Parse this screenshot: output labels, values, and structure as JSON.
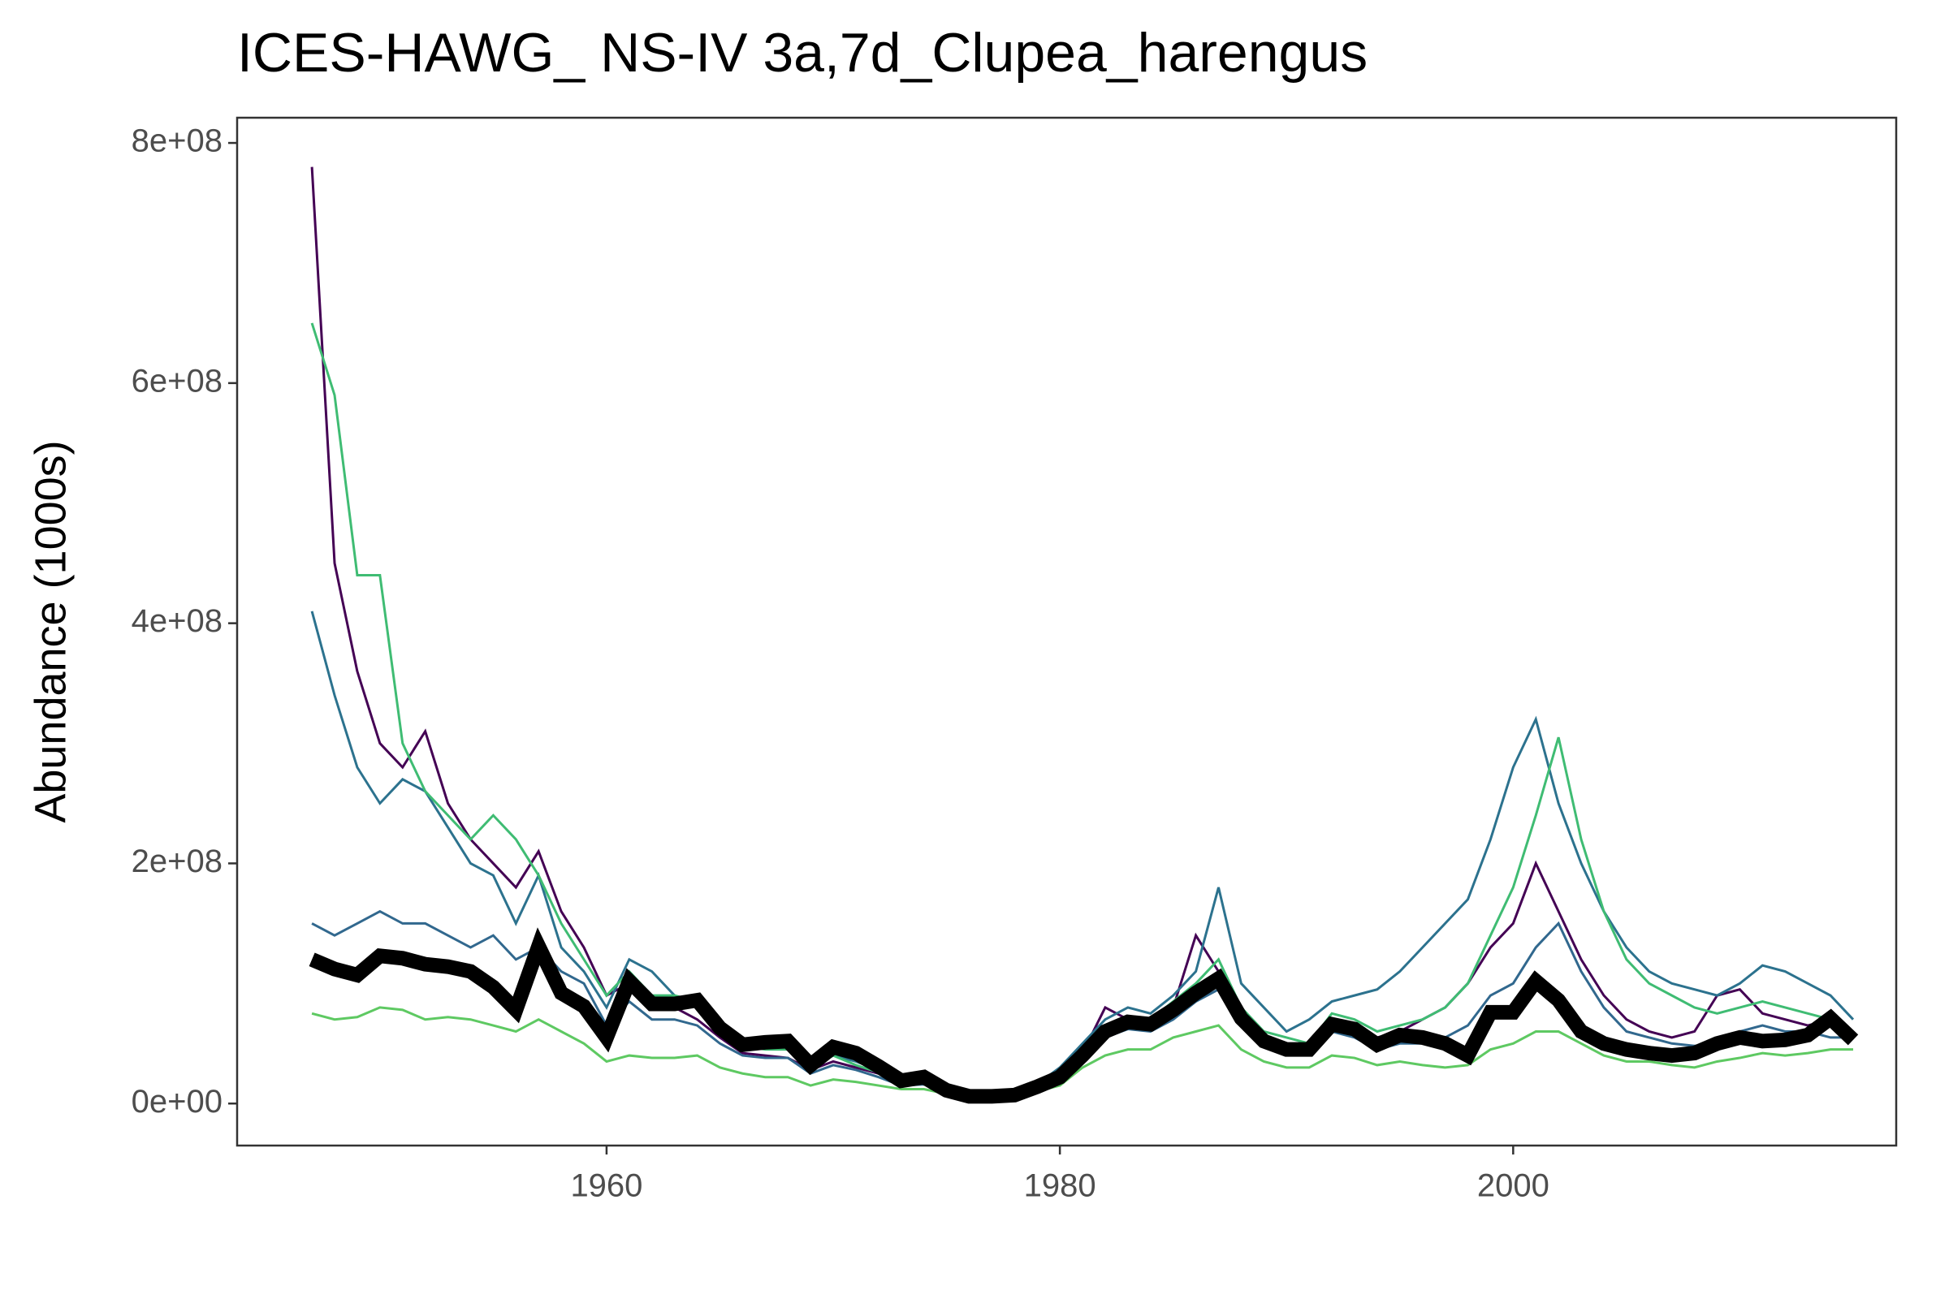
{
  "chart_data": {
    "type": "line",
    "title": "ICES-HAWG_ NS-IV 3a,7d_Clupea_harengus",
    "y_label": "Abundance (1000s)",
    "x": [
      1947,
      1948,
      1949,
      1950,
      1951,
      1952,
      1953,
      1954,
      1955,
      1956,
      1957,
      1958,
      1959,
      1960,
      1961,
      1962,
      1963,
      1964,
      1965,
      1966,
      1967,
      1968,
      1969,
      1970,
      1971,
      1972,
      1973,
      1974,
      1975,
      1976,
      1977,
      1978,
      1979,
      1980,
      1981,
      1982,
      1983,
      1984,
      1985,
      1986,
      1987,
      1988,
      1989,
      1990,
      1991,
      1992,
      1993,
      1994,
      1995,
      1996,
      1997,
      1998,
      1999,
      2000,
      2001,
      2002,
      2003,
      2004,
      2005,
      2006,
      2007,
      2008,
      2009,
      2010,
      2011,
      2012,
      2013,
      2014,
      2015
    ],
    "xlim": [
      1943.7,
      2016.9
    ],
    "xticks": [
      1960,
      1980,
      2000
    ],
    "ylim": [
      -35000000,
      821000000
    ],
    "yticks": [
      {
        "value": 0,
        "label": "0e+00"
      },
      {
        "value": 200000000,
        "label": "2e+08"
      },
      {
        "value": 400000000,
        "label": "4e+08"
      },
      {
        "value": 600000000,
        "label": "6e+08"
      },
      {
        "value": 800000000,
        "label": "8e+08"
      }
    ],
    "grid": false,
    "series": [
      {
        "color": "#440154",
        "linewidth": 3,
        "values": [
          780000000.0,
          450000000.0,
          360000000.0,
          300000000.0,
          280000000.0,
          310000000.0,
          250000000.0,
          220000000.0,
          200000000.0,
          180000000.0,
          210000000.0,
          160000000.0,
          130000000.0,
          90000000.0,
          100000000.0,
          80000000.0,
          80000000.0,
          70000000.0,
          55000000.0,
          42000000.0,
          40000000.0,
          38000000.0,
          28000000.0,
          35000000.0,
          30000000.0,
          25000000.0,
          17000000.0,
          18000000.0,
          10000000.0,
          6000000.0,
          6000000.0,
          7000000.0,
          14000000.0,
          22000000.0,
          42000000.0,
          80000000.0,
          70000000.0,
          68000000.0,
          80000000.0,
          140000000.0,
          110000000.0,
          70000000.0,
          50000000.0,
          42000000.0,
          45000000.0,
          70000000.0,
          65000000.0,
          55000000.0,
          60000000.0,
          70000000.0,
          80000000.0,
          100000000.0,
          130000000.0,
          150000000.0,
          200000000.0,
          160000000.0,
          120000000.0,
          90000000.0,
          70000000.0,
          60000000.0,
          55000000.0,
          60000000.0,
          90000000.0,
          95000000.0,
          75000000.0,
          70000000.0,
          65000000.0,
          70000000.0,
          55000000.0
        ]
      },
      {
        "color": "#2c728e",
        "linewidth": 3,
        "values": [
          410000000.0,
          340000000.0,
          280000000.0,
          250000000.0,
          270000000.0,
          260000000.0,
          230000000.0,
          200000000.0,
          190000000.0,
          150000000.0,
          190000000.0,
          130000000.0,
          110000000.0,
          80000000.0,
          120000000.0,
          110000000.0,
          90000000.0,
          80000000.0,
          60000000.0,
          50000000.0,
          50000000.0,
          45000000.0,
          30000000.0,
          40000000.0,
          35000000.0,
          28000000.0,
          20000000.0,
          20000000.0,
          12000000.0,
          8000000.0,
          7000000.0,
          8000000.0,
          16000000.0,
          30000000.0,
          50000000.0,
          70000000.0,
          80000000.0,
          75000000.0,
          90000000.0,
          110000000.0,
          180000000.0,
          100000000.0,
          80000000.0,
          60000000.0,
          70000000.0,
          85000000.0,
          90000000.0,
          95000000.0,
          110000000.0,
          130000000.0,
          150000000.0,
          170000000.0,
          220000000.0,
          280000000.0,
          320000000.0,
          250000000.0,
          200000000.0,
          160000000.0,
          130000000.0,
          110000000.0,
          100000000.0,
          95000000.0,
          90000000.0,
          100000000.0,
          115000000.0,
          110000000.0,
          100000000.0,
          90000000.0,
          70000000.0
        ]
      },
      {
        "color": "#3fbc73",
        "linewidth": 3,
        "values": [
          650000000.0,
          590000000.0,
          440000000.0,
          440000000.0,
          300000000.0,
          260000000.0,
          240000000.0,
          220000000.0,
          240000000.0,
          220000000.0,
          190000000.0,
          150000000.0,
          120000000.0,
          90000000.0,
          110000000.0,
          90000000.0,
          90000000.0,
          85000000.0,
          60000000.0,
          48000000.0,
          45000000.0,
          45000000.0,
          30000000.0,
          40000000.0,
          32000000.0,
          26000000.0,
          18000000.0,
          20000000.0,
          11000000.0,
          7000000.0,
          7000000.0,
          8000000.0,
          15000000.0,
          26000000.0,
          45000000.0,
          62000000.0,
          70000000.0,
          70000000.0,
          85000000.0,
          100000000.0,
          120000000.0,
          80000000.0,
          60000000.0,
          55000000.0,
          50000000.0,
          75000000.0,
          70000000.0,
          60000000.0,
          65000000.0,
          70000000.0,
          80000000.0,
          100000000.0,
          140000000.0,
          180000000.0,
          240000000.0,
          305000000.0,
          220000000.0,
          160000000.0,
          120000000.0,
          100000000.0,
          90000000.0,
          80000000.0,
          75000000.0,
          80000000.0,
          85000000.0,
          80000000.0,
          75000000.0,
          70000000.0,
          60000000.0
        ]
      },
      {
        "color": "#31688e",
        "linewidth": 3,
        "values": [
          150000000.0,
          140000000.0,
          150000000.0,
          160000000.0,
          150000000.0,
          150000000.0,
          140000000.0,
          130000000.0,
          140000000.0,
          120000000.0,
          130000000.0,
          110000000.0,
          100000000.0,
          65000000.0,
          85000000.0,
          70000000.0,
          70000000.0,
          65000000.0,
          50000000.0,
          40000000.0,
          38000000.0,
          38000000.0,
          25000000.0,
          32000000.0,
          28000000.0,
          22000000.0,
          15000000.0,
          16000000.0,
          10000000.0,
          6000000.0,
          6000000.0,
          7000000.0,
          12000000.0,
          20000000.0,
          38000000.0,
          55000000.0,
          62000000.0,
          60000000.0,
          70000000.0,
          85000000.0,
          95000000.0,
          65000000.0,
          50000000.0,
          42000000.0,
          42000000.0,
          60000000.0,
          55000000.0,
          45000000.0,
          50000000.0,
          50000000.0,
          55000000.0,
          65000000.0,
          90000000.0,
          100000000.0,
          130000000.0,
          150000000.0,
          110000000.0,
          80000000.0,
          60000000.0,
          55000000.0,
          50000000.0,
          48000000.0,
          50000000.0,
          60000000.0,
          65000000.0,
          60000000.0,
          60000000.0,
          55000000.0,
          55000000.0
        ]
      },
      {
        "color": "#5ec962",
        "linewidth": 3,
        "values": [
          75000000.0,
          70000000.0,
          72000000.0,
          80000000.0,
          78000000.0,
          70000000.0,
          72000000.0,
          70000000.0,
          65000000.0,
          60000000.0,
          70000000.0,
          60000000.0,
          50000000.0,
          35000000.0,
          40000000.0,
          38000000.0,
          38000000.0,
          40000000.0,
          30000000.0,
          25000000.0,
          22000000.0,
          22000000.0,
          15000000.0,
          20000000.0,
          18000000.0,
          15000000.0,
          12000000.0,
          12000000.0,
          8000000.0,
          5000000.0,
          5000000.0,
          6000000.0,
          10000000.0,
          15000000.0,
          30000000.0,
          40000000.0,
          45000000.0,
          45000000.0,
          55000000.0,
          60000000.0,
          65000000.0,
          45000000.0,
          35000000.0,
          30000000.0,
          30000000.0,
          40000000.0,
          38000000.0,
          32000000.0,
          35000000.0,
          32000000.0,
          30000000.0,
          32000000.0,
          45000000.0,
          50000000.0,
          60000000.0,
          60000000.0,
          50000000.0,
          40000000.0,
          35000000.0,
          35000000.0,
          32000000.0,
          30000000.0,
          35000000.0,
          38000000.0,
          42000000.0,
          40000000.0,
          42000000.0,
          45000000.0,
          45000000.0
        ]
      },
      {
        "color": "#000000",
        "linewidth": 18,
        "values": [
          120000000.0,
          112000000.0,
          107000000.0,
          123000000.0,
          121000000.0,
          116000000.0,
          114000000.0,
          110000000.0,
          97000000.0,
          78000000.0,
          131000000.0,
          92000000.0,
          81000000.0,
          55000000.0,
          102000000.0,
          83000000.0,
          83000000.0,
          86000000.0,
          63000000.0,
          49000000.0,
          51000000.0,
          52000000.0,
          32000000.0,
          47000000.0,
          42000000.0,
          31000000.0,
          19000000.0,
          22000000.0,
          11000000.0,
          6000000.0,
          6000000.0,
          7000000.0,
          14000000.0,
          22000000.0,
          40000000.0,
          60000000.0,
          68000000.0,
          66000000.0,
          78000000.0,
          92000000.0,
          104000000.0,
          71000000.0,
          52000000.0,
          45000000.0,
          45000000.0,
          66000000.0,
          62000000.0,
          49000000.0,
          57000000.0,
          55000000.0,
          50000000.0,
          40000000.0,
          76000000.0,
          76000000.0,
          102000000.0,
          86000000.0,
          60000000.0,
          50000000.0,
          45000000.0,
          42000000.0,
          40000000.0,
          42000000.0,
          50000000.0,
          55000000.0,
          52000000.0,
          53000000.0,
          57000000.0,
          71000000.0,
          53000000.0
        ]
      }
    ]
  }
}
